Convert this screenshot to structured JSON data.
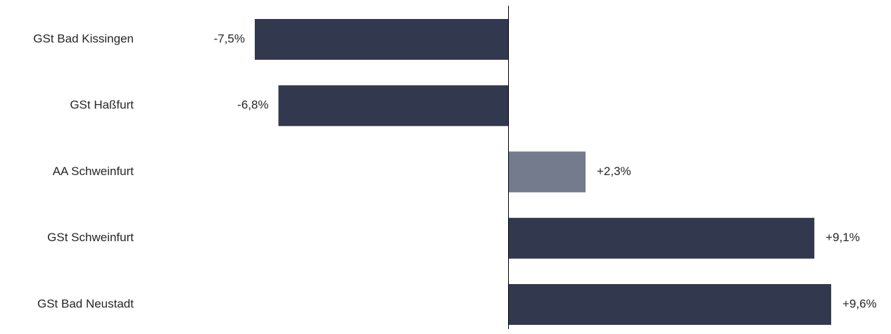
{
  "chart_data": {
    "type": "bar",
    "orientation": "horizontal",
    "title": "",
    "xlabel": "",
    "ylabel": "",
    "grid": false,
    "categories": [
      "GSt Bad Kissingen",
      "GSt Haßfurt",
      "AA Schweinfurt",
      "GSt Schweinfurt",
      "GSt Bad Neustadt"
    ],
    "values": [
      -7.5,
      -6.8,
      2.3,
      9.1,
      9.6
    ],
    "value_labels": [
      "-7,5%",
      "-6,8%",
      "+2,3%",
      "+9,1%",
      "+9,6%"
    ],
    "xlim": [
      -7.5,
      9.6
    ],
    "colors": {
      "default": "#32394f",
      "highlight": "#737b8d",
      "axis": "#000000"
    },
    "highlight_index": 2
  }
}
